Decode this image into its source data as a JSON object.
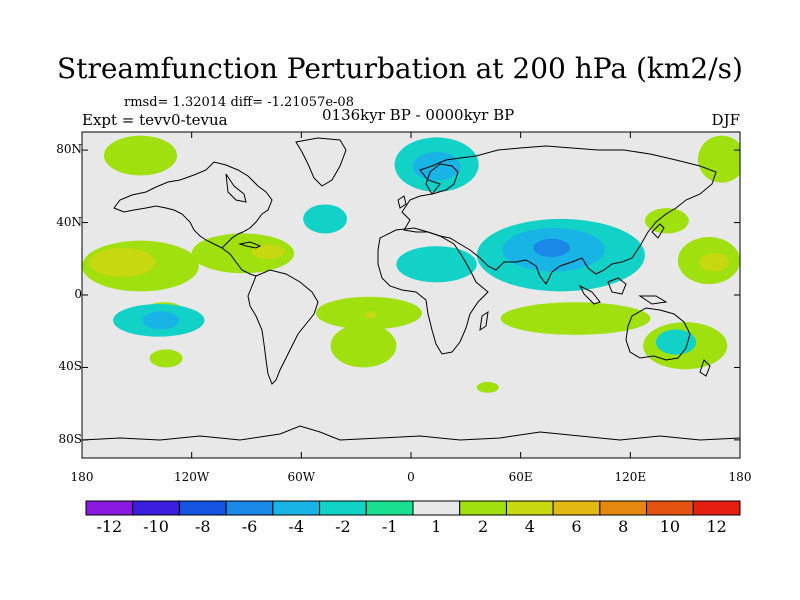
{
  "title": "Streamfunction Perturbation at 200 hPa (km2/s)",
  "subtitle_stats": "rmsd= 1.32014 diff= -1.21057e-08",
  "subtitle_expt": "Expt = tevv0-tevua",
  "subtitle_period": "0136kyr BP - 0000kyr BP",
  "subtitle_season": "DJF",
  "map": {
    "projection": "cylindrical-equidistant",
    "lon_range": [
      -180,
      180
    ],
    "lat_range": [
      -90,
      90
    ],
    "x_ticks": [
      {
        "value": -180,
        "label": "180"
      },
      {
        "value": -120,
        "label": "120W"
      },
      {
        "value": -60,
        "label": "60W"
      },
      {
        "value": 0,
        "label": "0"
      },
      {
        "value": 60,
        "label": "60E"
      },
      {
        "value": 120,
        "label": "120E"
      },
      {
        "value": 180,
        "label": "180"
      }
    ],
    "y_ticks": [
      {
        "value": 80,
        "label": "80N"
      },
      {
        "value": 40,
        "label": "40N"
      },
      {
        "value": 0,
        "label": "0"
      },
      {
        "value": -40,
        "label": "40S"
      },
      {
        "value": -80,
        "label": "80S"
      }
    ],
    "background_color": "#e8e8e8"
  },
  "colorbar": {
    "labels": [
      "-12",
      "-10",
      "-8",
      "-6",
      "-4",
      "-2",
      "-1",
      "1",
      "2",
      "4",
      "6",
      "8",
      "10",
      "12"
    ],
    "colors": [
      "#8a19e0",
      "#3a1fe0",
      "#1454e0",
      "#1a88e6",
      "#18b4e6",
      "#12d2c8",
      "#18e090",
      "#e8e8e8",
      "#a0e00e",
      "#c8d810",
      "#e4b812",
      "#e48810",
      "#e45410",
      "#e41e10"
    ]
  },
  "contour_regions": [
    {
      "level": "2",
      "lon": -148,
      "lat": 77,
      "rx": 20,
      "ry": 11
    },
    {
      "level": "2",
      "lon": 170,
      "lat": 75,
      "rx": 13,
      "ry": 13
    },
    {
      "level": "2",
      "lon": -148,
      "lat": 16,
      "rx": 32,
      "ry": 14
    },
    {
      "level": "4",
      "lon": -158,
      "lat": 18,
      "rx": 18,
      "ry": 8
    },
    {
      "level": "2",
      "lon": -92,
      "lat": 23,
      "rx": 28,
      "ry": 11
    },
    {
      "level": "4",
      "lon": -78,
      "lat": 24,
      "rx": 9,
      "ry": 4
    },
    {
      "level": "2",
      "lon": -135,
      "lat": -7,
      "rx": 9,
      "ry": 3
    },
    {
      "level": "2",
      "lon": 163,
      "lat": 19,
      "rx": 17,
      "ry": 13
    },
    {
      "level": "2",
      "lon": 140,
      "lat": 41,
      "rx": 12,
      "ry": 7
    },
    {
      "level": "4",
      "lon": 166,
      "lat": 18,
      "rx": 8,
      "ry": 5
    },
    {
      "level": "-2",
      "lon": 14,
      "lat": 72,
      "rx": 23,
      "ry": 15
    },
    {
      "level": "-4",
      "lon": 14,
      "lat": 71,
      "rx": 13,
      "ry": 8
    },
    {
      "level": "-2",
      "lon": -47,
      "lat": 42,
      "rx": 12,
      "ry": 8
    },
    {
      "level": "-2",
      "lon": 14,
      "lat": 17,
      "rx": 22,
      "ry": 10
    },
    {
      "level": "-2",
      "lon": 82,
      "lat": 22,
      "rx": 46,
      "ry": 20
    },
    {
      "level": "-4",
      "lon": 78,
      "lat": 25,
      "rx": 28,
      "ry": 12
    },
    {
      "level": "-6",
      "lon": 77,
      "lat": 26,
      "rx": 10,
      "ry": 5
    },
    {
      "level": "-2",
      "lon": -138,
      "lat": -14,
      "rx": 25,
      "ry": 9
    },
    {
      "level": "-4",
      "lon": -137,
      "lat": -14,
      "rx": 10,
      "ry": 5
    },
    {
      "level": "2",
      "lon": -23,
      "lat": -10,
      "rx": 29,
      "ry": 9
    },
    {
      "level": "2",
      "lon": -26,
      "lat": -28,
      "rx": 18,
      "ry": 12
    },
    {
      "level": "4",
      "lon": -22,
      "lat": -11,
      "rx": 3,
      "ry": 2
    },
    {
      "level": "2",
      "lon": 90,
      "lat": -13,
      "rx": 41,
      "ry": 9
    },
    {
      "level": "2",
      "lon": -134,
      "lat": -35,
      "rx": 9,
      "ry": 5
    },
    {
      "level": "2",
      "lon": 42,
      "lat": -51,
      "rx": 6,
      "ry": 3
    },
    {
      "level": "2",
      "lon": 150,
      "lat": -28,
      "rx": 23,
      "ry": 13
    },
    {
      "level": "-2",
      "lon": 145,
      "lat": -26,
      "rx": 11,
      "ry": 7
    }
  ]
}
